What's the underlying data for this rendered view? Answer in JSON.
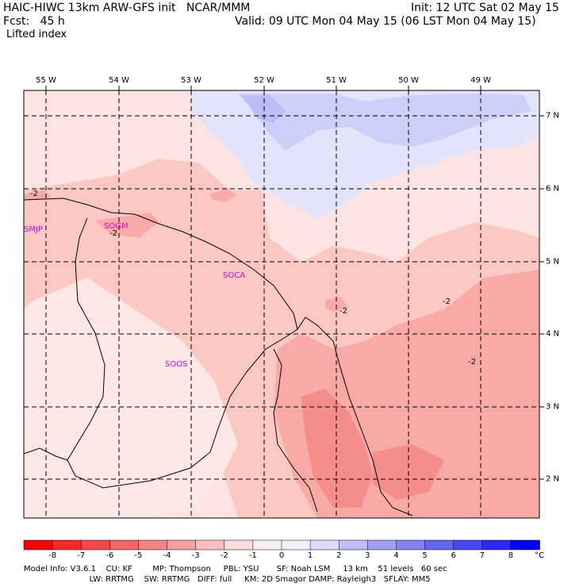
{
  "header": {
    "model_line": "HAIC-HIWC 13km ARW-GFS init   NCAR/MMM",
    "fcst_line": "Fcst:   45 h",
    "field_name": "Lifted index",
    "init_line": "Init: 12 UTC Sat 02 May 15",
    "valid_line": "Valid: 09 UTC Mon 04 May 15 (06 LST Mon 04 May 15)"
  },
  "map": {
    "lon_labels": [
      "55 W",
      "54 W",
      "53 W",
      "52 W",
      "51 W",
      "50 W",
      "49 W"
    ],
    "lat_labels": [
      "7 N",
      "6 N",
      "5 N",
      "4 N",
      "3 N",
      "2 N"
    ],
    "station_labels": [
      "SMJP",
      "SOGM",
      "SOCA",
      "SOOS"
    ],
    "contour_labels": [
      "-2",
      "-2",
      "-2",
      "-2",
      "-2"
    ],
    "colors": {
      "light_pink": "#fde4e2",
      "pink": "#fcc8c4",
      "mid_pink": "#f9a8a4",
      "deep_pink": "#f58a86",
      "light_blue": "#e0e2fb",
      "blue": "#c7cbf7",
      "station": "#e000e0"
    }
  },
  "colorbar": {
    "ticks": [
      "-8",
      "-7",
      "-6",
      "-5",
      "-4",
      "-3",
      "-2",
      "-1",
      "0",
      "1",
      "2",
      "3",
      "4",
      "5",
      "6",
      "7",
      "8"
    ],
    "unit": "°C",
    "colors": [
      "#ff0000",
      "#fc2828",
      "#fa4646",
      "#f86464",
      "#f88282",
      "#f8a0a0",
      "#fabebe",
      "#fcdcdc",
      "#fff0f0",
      "#f0f0ff",
      "#dcdcfc",
      "#bebefa",
      "#a0a0f8",
      "#8282f8",
      "#6464f8",
      "#4646fa",
      "#2828fc",
      "#0000ff"
    ]
  },
  "footer": {
    "line1": "Model Info: V3.6.1    CU: KF        MP: Thompson     PBL: YSU       SF: Noah LSM     13 km    51 levels   60 sec",
    "line2": "                          LW: RRTMG    SW: RRTMG   DIFF: full     KM: 2D Smagor DAMP: Rayleigh3   SFLAY: MM5"
  }
}
